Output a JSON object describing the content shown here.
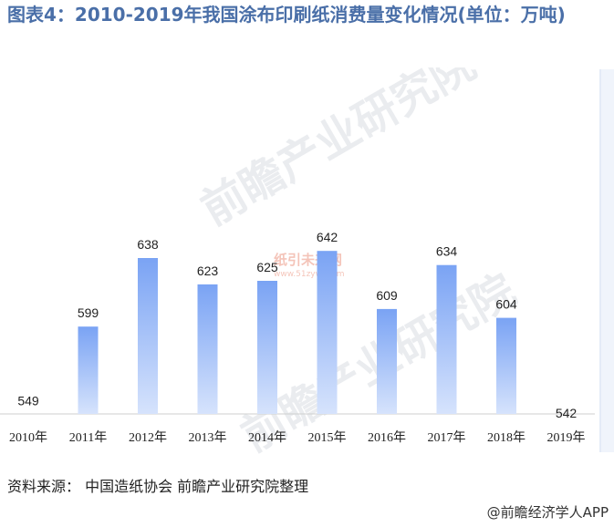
{
  "title": "图表4：2010-2019年我国涂布印刷纸消费量变化情况(单位：万吨)",
  "source": "资料来源：  中国造纸协会 前瞻产业研究院整理",
  "brand": "@前瞻经济学人APP",
  "watermarks": {
    "main": "前瞻产业研究院",
    "center": "纸引未来网",
    "center_url": "www.51zywl.com"
  },
  "colors": {
    "title": "#4a6fa8",
    "bar_top": "#7aa3f4",
    "bar_bottom": "#d6e3fc"
  },
  "chart_data": {
    "type": "bar",
    "categories": [
      "2010年",
      "2011年",
      "2012年",
      "2013年",
      "2014年",
      "2015年",
      "2016年",
      "2017年",
      "2018年",
      "2019年"
    ],
    "values": [
      549,
      599,
      638,
      623,
      625,
      642,
      609,
      634,
      604,
      542
    ],
    "title": "图表4：2010-2019年我国涂布印刷纸消费量变化情况(单位：万吨)",
    "xlabel": "",
    "ylabel": "",
    "data_labels": true,
    "grid": false,
    "legend": "none"
  }
}
